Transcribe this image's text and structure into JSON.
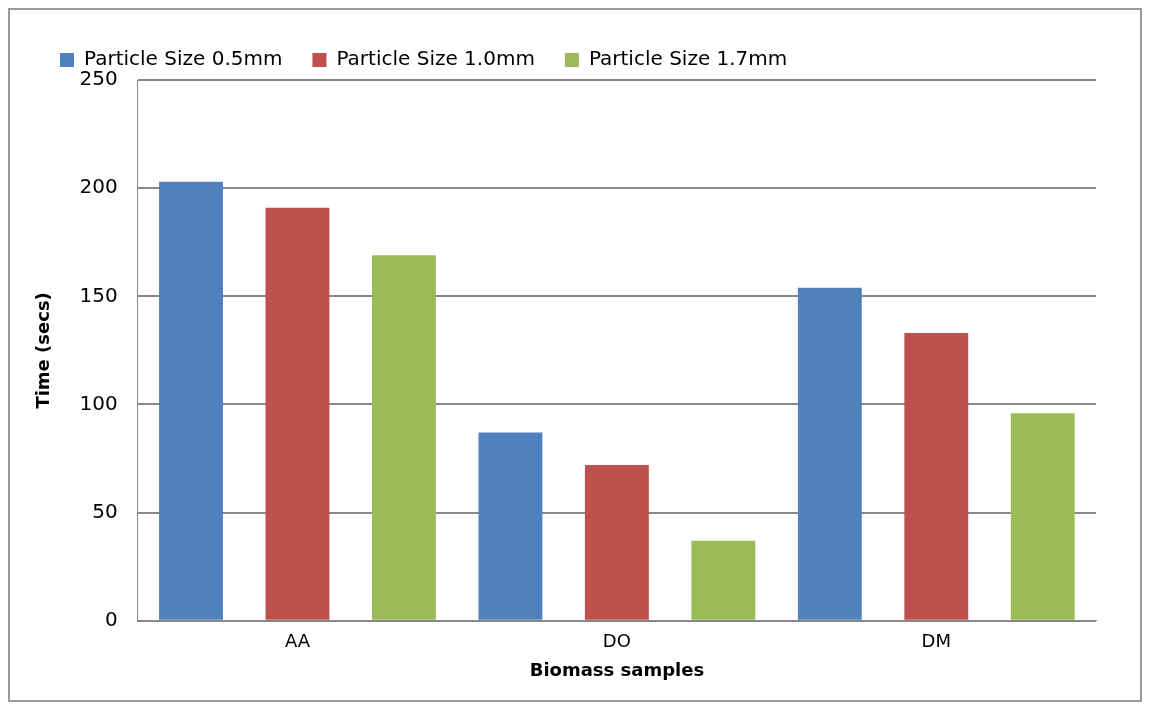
{
  "chart_data": {
    "type": "bar",
    "xlabel": "Biomass samples",
    "ylabel": "Time (secs)",
    "categories": [
      "AA",
      "DO",
      "DM"
    ],
    "series": [
      {
        "name": "Particle Size 0.5mm",
        "color": "#4f81bd",
        "values": [
          203,
          87,
          154
        ]
      },
      {
        "name": "Particle Size 1.0mm",
        "color": "#c0504d",
        "values": [
          191,
          72,
          133
        ]
      },
      {
        "name": "Particle Size 1.7mm",
        "color": "#9bbb59",
        "values": [
          169,
          37,
          96
        ]
      }
    ],
    "ylim": [
      0,
      250
    ],
    "yticks": [
      0,
      50,
      100,
      150,
      200,
      250
    ],
    "grid": "y",
    "legend": "top left"
  }
}
